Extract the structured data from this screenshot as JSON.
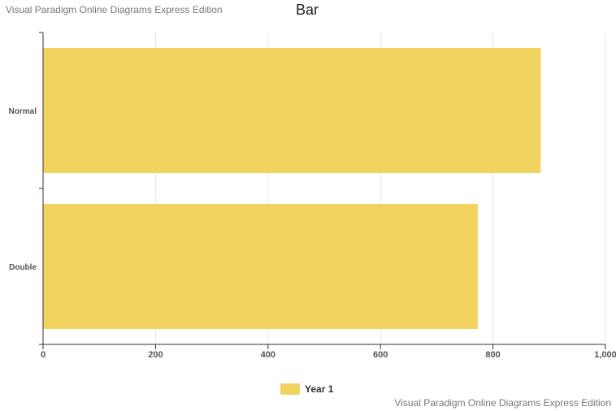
{
  "watermark": {
    "top": "Visual Paradigm Online Diagrams Express Edition",
    "bottom": "Visual Paradigm Online Diagrams Express Edition"
  },
  "chart_data": {
    "type": "bar",
    "orientation": "horizontal",
    "title": "Bar",
    "categories": [
      "Normal",
      "Double"
    ],
    "series": [
      {
        "name": "Year 1",
        "values": [
          885,
          773
        ],
        "color": "#f3d360"
      }
    ],
    "xlim": [
      0,
      1000
    ],
    "x_ticks": [
      "0",
      "200",
      "400",
      "600",
      "800",
      "1,000"
    ],
    "grid": true,
    "legend_position": "bottom"
  },
  "colors": {
    "bar": "#f3d360",
    "grid": "#e6e6e6",
    "axis": "#333333",
    "tick_text": "#555555"
  }
}
